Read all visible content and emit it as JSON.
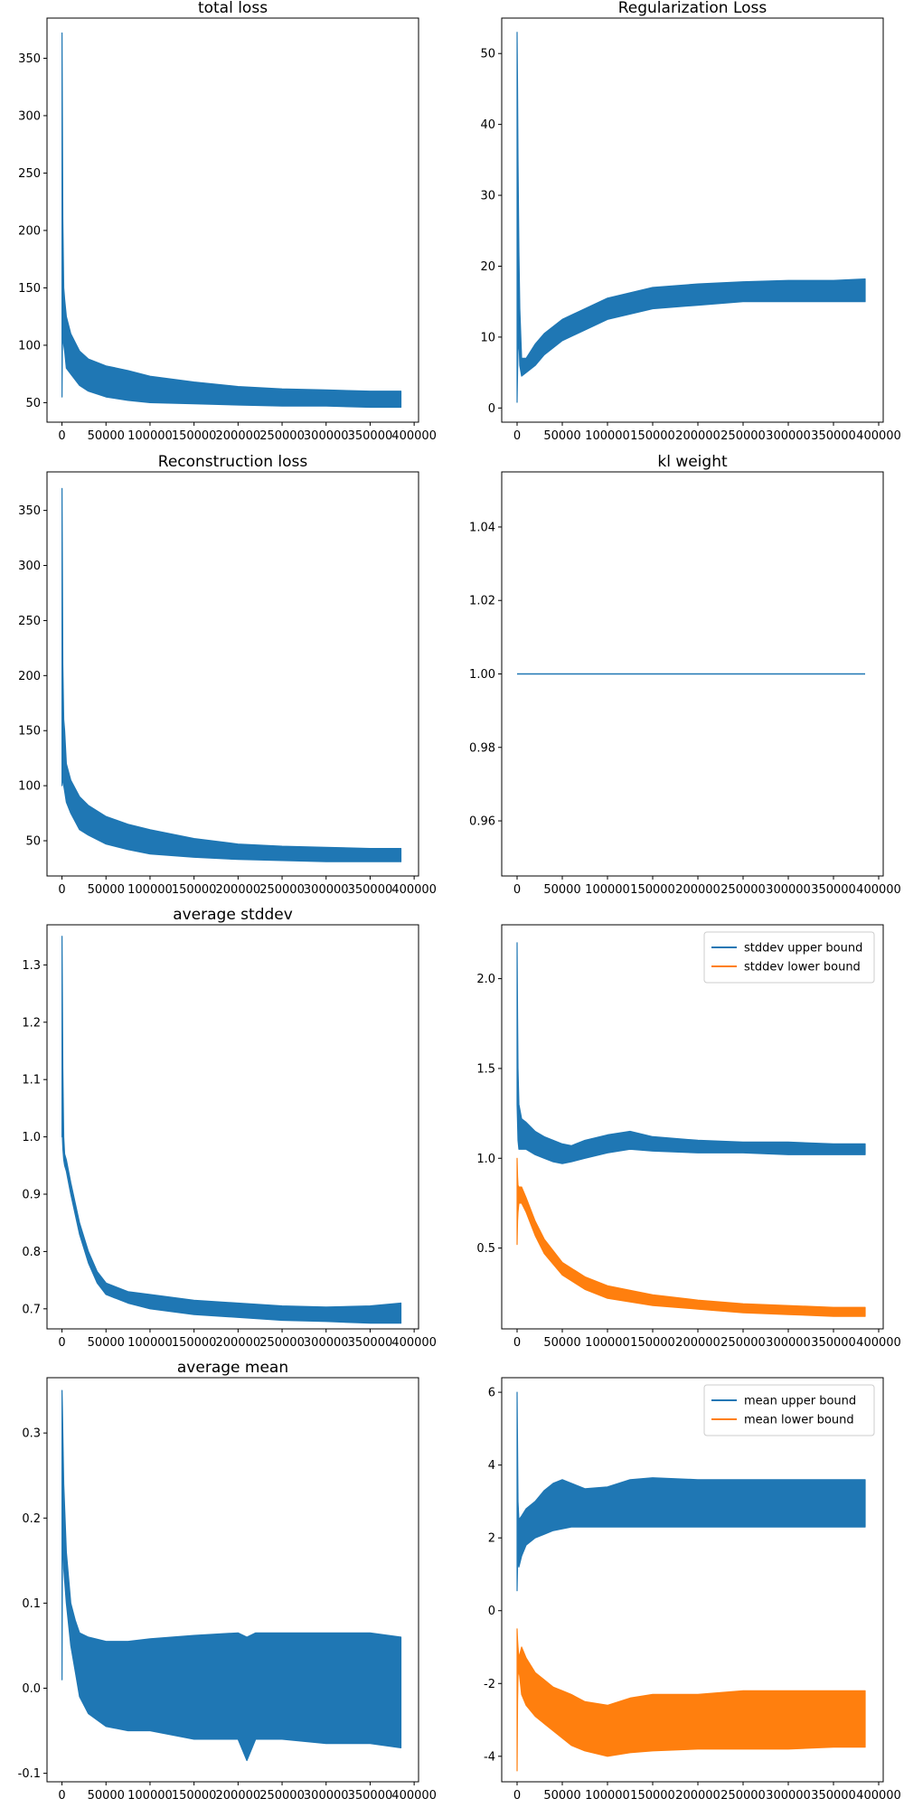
{
  "chart_data": [
    {
      "type": "line",
      "title": "total loss",
      "xlim": [
        -17000,
        405000
      ],
      "ylim": [
        33,
        385
      ],
      "xticks": [
        0,
        50000,
        100000,
        150000,
        200000,
        250000,
        300000,
        350000,
        400000
      ],
      "yticks": [
        50,
        100,
        150,
        200,
        250,
        300,
        350
      ],
      "grid": false,
      "legend": null,
      "series": [
        {
          "color": "#1f77b4",
          "mode": "band",
          "x": [
            0,
            500,
            1000,
            2000,
            3000,
            5000,
            10000,
            20000,
            30000,
            50000,
            75000,
            100000,
            150000,
            200000,
            250000,
            300000,
            350000,
            385000
          ],
          "min": [
            55,
            100,
            110,
            100,
            95,
            80,
            75,
            65,
            60,
            55,
            52,
            50,
            49,
            48,
            47,
            47,
            46,
            46
          ],
          "max": [
            372,
            300,
            210,
            150,
            140,
            125,
            110,
            95,
            88,
            82,
            78,
            73,
            68,
            64,
            62,
            61,
            60,
            60
          ]
        }
      ]
    },
    {
      "type": "line",
      "title": "Regularization Loss",
      "xlim": [
        -17000,
        405000
      ],
      "ylim": [
        -2,
        55
      ],
      "xticks": [
        0,
        50000,
        100000,
        150000,
        200000,
        250000,
        300000,
        350000,
        400000
      ],
      "yticks": [
        0,
        10,
        20,
        30,
        40,
        50
      ],
      "grid": false,
      "legend": null,
      "series": [
        {
          "color": "#1f77b4",
          "mode": "band",
          "x": [
            0,
            500,
            1000,
            2000,
            3000,
            5000,
            10000,
            20000,
            30000,
            50000,
            75000,
            100000,
            150000,
            200000,
            250000,
            300000,
            350000,
            385000
          ],
          "min": [
            0.8,
            5,
            8,
            10,
            6,
            4.5,
            5,
            6,
            7.5,
            9.5,
            11,
            12.5,
            14,
            14.5,
            15,
            15,
            15,
            15
          ],
          "max": [
            53,
            45,
            35,
            22,
            14,
            7,
            7,
            9,
            10.5,
            12.5,
            14,
            15.5,
            17,
            17.5,
            17.8,
            18,
            18,
            18.2
          ]
        }
      ]
    },
    {
      "type": "line",
      "title": "Reconstruction loss",
      "xlim": [
        -17000,
        405000
      ],
      "ylim": [
        18,
        385
      ],
      "xticks": [
        0,
        50000,
        100000,
        150000,
        200000,
        250000,
        300000,
        350000,
        400000
      ],
      "yticks": [
        50,
        100,
        150,
        200,
        250,
        300,
        350
      ],
      "grid": false,
      "legend": null,
      "series": [
        {
          "color": "#1f77b4",
          "mode": "band",
          "x": [
            0,
            500,
            1000,
            2000,
            3000,
            5000,
            10000,
            20000,
            30000,
            50000,
            75000,
            100000,
            150000,
            200000,
            250000,
            300000,
            350000,
            385000
          ],
          "min": [
            100,
            110,
            105,
            100,
            95,
            85,
            75,
            60,
            55,
            47,
            42,
            38,
            35,
            33,
            32,
            31,
            31,
            31
          ],
          "max": [
            370,
            300,
            210,
            160,
            150,
            120,
            105,
            90,
            82,
            72,
            65,
            60,
            52,
            47,
            45,
            44,
            43,
            43
          ]
        }
      ]
    },
    {
      "type": "line",
      "title": "kl weight",
      "xlim": [
        -17000,
        405000
      ],
      "ylim": [
        0.945,
        1.055
      ],
      "xticks": [
        0,
        50000,
        100000,
        150000,
        200000,
        250000,
        300000,
        350000,
        400000
      ],
      "yticks": [
        0.96,
        0.98,
        1.0,
        1.02,
        1.04
      ],
      "grid": false,
      "legend": null,
      "series": [
        {
          "color": "#1f77b4",
          "mode": "line",
          "x": [
            0,
            385000
          ],
          "y": [
            1.0,
            1.0
          ]
        }
      ]
    },
    {
      "type": "line",
      "title": "average stddev",
      "xlim": [
        -17000,
        405000
      ],
      "ylim": [
        0.665,
        1.37
      ],
      "xticks": [
        0,
        50000,
        100000,
        150000,
        200000,
        250000,
        300000,
        350000,
        400000
      ],
      "yticks": [
        0.7,
        0.8,
        0.9,
        1.0,
        1.1,
        1.2,
        1.3
      ],
      "grid": false,
      "legend": null,
      "series": [
        {
          "color": "#1f77b4",
          "mode": "band",
          "x": [
            0,
            500,
            1000,
            2000,
            3000,
            5000,
            10000,
            20000,
            30000,
            40000,
            50000,
            75000,
            100000,
            150000,
            200000,
            250000,
            300000,
            350000,
            385000
          ],
          "min": [
            1.0,
            1.0,
            0.98,
            0.96,
            0.95,
            0.94,
            0.9,
            0.83,
            0.78,
            0.745,
            0.725,
            0.71,
            0.7,
            0.69,
            0.685,
            0.68,
            0.678,
            0.675,
            0.675
          ],
          "max": [
            1.35,
            1.25,
            1.12,
            1.0,
            0.97,
            0.96,
            0.92,
            0.85,
            0.8,
            0.765,
            0.745,
            0.73,
            0.725,
            0.715,
            0.71,
            0.705,
            0.703,
            0.705,
            0.71
          ]
        }
      ]
    },
    {
      "type": "line",
      "title": "",
      "xlim": [
        -17000,
        405000
      ],
      "ylim": [
        0.05,
        2.3
      ],
      "xticks": [
        0,
        50000,
        100000,
        150000,
        200000,
        250000,
        300000,
        350000,
        400000
      ],
      "yticks": [
        0.5,
        1.0,
        1.5,
        2.0
      ],
      "grid": false,
      "legend": "top-right",
      "series": [
        {
          "name": "stddev upper bound",
          "color": "#1f77b4",
          "mode": "band",
          "x": [
            0,
            500,
            1000,
            2000,
            5000,
            10000,
            20000,
            30000,
            40000,
            50000,
            60000,
            75000,
            100000,
            125000,
            150000,
            200000,
            250000,
            300000,
            350000,
            385000
          ],
          "min": [
            1.3,
            1.2,
            1.1,
            1.05,
            1.05,
            1.05,
            1.02,
            1.0,
            0.98,
            0.97,
            0.98,
            1.0,
            1.03,
            1.05,
            1.04,
            1.03,
            1.03,
            1.02,
            1.02,
            1.02
          ],
          "max": [
            2.2,
            1.8,
            1.5,
            1.3,
            1.22,
            1.2,
            1.15,
            1.12,
            1.1,
            1.08,
            1.07,
            1.1,
            1.13,
            1.15,
            1.12,
            1.1,
            1.09,
            1.09,
            1.08,
            1.08
          ]
        },
        {
          "name": "stddev lower bound",
          "color": "#ff7f0e",
          "mode": "band",
          "x": [
            0,
            500,
            1000,
            2000,
            5000,
            10000,
            20000,
            30000,
            50000,
            75000,
            100000,
            150000,
            200000,
            250000,
            300000,
            350000,
            385000
          ],
          "min": [
            0.52,
            0.65,
            0.7,
            0.75,
            0.75,
            0.7,
            0.57,
            0.47,
            0.35,
            0.27,
            0.22,
            0.18,
            0.16,
            0.14,
            0.13,
            0.12,
            0.12
          ],
          "max": [
            1.0,
            0.9,
            0.85,
            0.84,
            0.84,
            0.78,
            0.65,
            0.55,
            0.42,
            0.34,
            0.29,
            0.24,
            0.21,
            0.19,
            0.18,
            0.17,
            0.17
          ]
        }
      ]
    },
    {
      "type": "line",
      "title": "average mean",
      "xlim": [
        -17000,
        405000
      ],
      "ylim": [
        -0.11,
        0.365
      ],
      "xticks": [
        0,
        50000,
        100000,
        150000,
        200000,
        250000,
        300000,
        350000,
        400000
      ],
      "yticks": [
        -0.1,
        0.0,
        0.1,
        0.2,
        0.3
      ],
      "grid": false,
      "legend": null,
      "series": [
        {
          "color": "#1f77b4",
          "mode": "band",
          "x": [
            0,
            500,
            1000,
            2000,
            5000,
            10000,
            15000,
            20000,
            30000,
            50000,
            75000,
            100000,
            150000,
            200000,
            210000,
            220000,
            250000,
            300000,
            350000,
            385000
          ],
          "min": [
            0.01,
            0.15,
            0.18,
            0.14,
            0.1,
            0.05,
            0.02,
            -0.01,
            -0.03,
            -0.045,
            -0.05,
            -0.05,
            -0.06,
            -0.06,
            -0.085,
            -0.06,
            -0.06,
            -0.065,
            -0.065,
            -0.07
          ],
          "max": [
            0.35,
            0.33,
            0.3,
            0.24,
            0.16,
            0.1,
            0.08,
            0.065,
            0.06,
            0.055,
            0.055,
            0.058,
            0.062,
            0.065,
            0.06,
            0.065,
            0.065,
            0.065,
            0.065,
            0.06
          ]
        }
      ]
    },
    {
      "type": "line",
      "title": "",
      "xlim": [
        -17000,
        405000
      ],
      "ylim": [
        -4.7,
        6.4
      ],
      "xticks": [
        0,
        50000,
        100000,
        150000,
        200000,
        250000,
        300000,
        350000,
        400000
      ],
      "yticks": [
        -4,
        -2,
        0,
        2,
        4,
        6
      ],
      "grid": false,
      "legend": "top-right",
      "series": [
        {
          "name": "mean upper bound",
          "color": "#1f77b4",
          "mode": "band",
          "x": [
            0,
            500,
            1000,
            2000,
            5000,
            10000,
            20000,
            30000,
            40000,
            50000,
            60000,
            75000,
            100000,
            125000,
            150000,
            200000,
            250000,
            300000,
            350000,
            385000
          ],
          "min": [
            0.55,
            1.2,
            1.4,
            1.2,
            1.5,
            1.8,
            2.0,
            2.1,
            2.2,
            2.25,
            2.3,
            2.3,
            2.3,
            2.3,
            2.3,
            2.3,
            2.3,
            2.3,
            2.3,
            2.3
          ],
          "max": [
            6.0,
            4.5,
            3.0,
            2.5,
            2.6,
            2.8,
            3.0,
            3.3,
            3.5,
            3.6,
            3.5,
            3.35,
            3.4,
            3.6,
            3.65,
            3.6,
            3.6,
            3.6,
            3.6,
            3.6
          ]
        },
        {
          "name": "mean lower bound",
          "color": "#ff7f0e",
          "mode": "band",
          "x": [
            0,
            500,
            1000,
            2000,
            5000,
            10000,
            20000,
            30000,
            40000,
            50000,
            60000,
            75000,
            100000,
            125000,
            150000,
            200000,
            250000,
            300000,
            350000,
            385000
          ],
          "min": [
            -4.4,
            -2.5,
            -1.8,
            -1.6,
            -2.3,
            -2.6,
            -2.9,
            -3.1,
            -3.3,
            -3.5,
            -3.7,
            -3.85,
            -4.0,
            -3.9,
            -3.85,
            -3.8,
            -3.8,
            -3.8,
            -3.75,
            -3.75
          ],
          "max": [
            -0.5,
            -0.8,
            -1.0,
            -1.3,
            -1.0,
            -1.3,
            -1.7,
            -1.9,
            -2.1,
            -2.2,
            -2.3,
            -2.5,
            -2.6,
            -2.4,
            -2.3,
            -2.3,
            -2.2,
            -2.2,
            -2.2,
            -2.2
          ]
        }
      ]
    }
  ]
}
